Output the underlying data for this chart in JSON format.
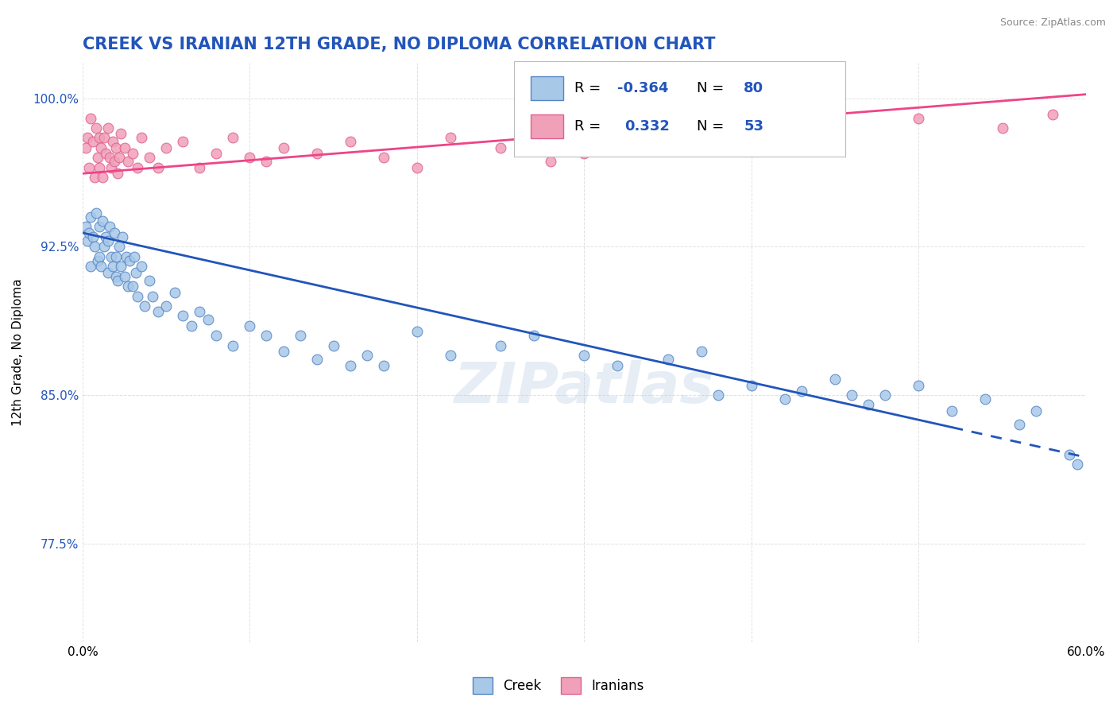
{
  "title": "CREEK VS IRANIAN 12TH GRADE, NO DIPLOMA CORRELATION CHART",
  "source_text": "Source: ZipAtlas.com",
  "ylabel": "12th Grade, No Diploma",
  "xlim": [
    0.0,
    60.0
  ],
  "ylim": [
    72.5,
    101.8
  ],
  "xticks": [
    0.0,
    10.0,
    20.0,
    30.0,
    40.0,
    50.0,
    60.0
  ],
  "yticks": [
    77.5,
    85.0,
    92.5,
    100.0
  ],
  "creek_color": "#a8c8e8",
  "iranian_color": "#f0a0b8",
  "creek_edge_color": "#5585c5",
  "iranian_edge_color": "#e06090",
  "trend_creek_color": "#2255bb",
  "trend_iranian_color": "#ee4488",
  "creek_R": -0.364,
  "creek_N": 80,
  "iranian_R": 0.332,
  "iranian_N": 53,
  "title_color": "#2255bb",
  "title_fontsize": 15,
  "background_color": "#ffffff",
  "grid_color": "#cccccc",
  "grid_alpha": 0.6,
  "watermark_text": "ZIPatlas",
  "watermark_color": "#b8cce4",
  "watermark_alpha": 0.35,
  "creek_x": [
    0.2,
    0.3,
    0.4,
    0.5,
    0.5,
    0.6,
    0.7,
    0.8,
    0.9,
    1.0,
    1.0,
    1.1,
    1.2,
    1.3,
    1.4,
    1.5,
    1.5,
    1.6,
    1.7,
    1.8,
    1.9,
    2.0,
    2.0,
    2.1,
    2.2,
    2.3,
    2.4,
    2.5,
    2.6,
    2.7,
    2.8,
    3.0,
    3.1,
    3.2,
    3.3,
    3.5,
    3.7,
    4.0,
    4.2,
    4.5,
    5.0,
    5.5,
    6.0,
    6.5,
    7.0,
    7.5,
    8.0,
    9.0,
    10.0,
    11.0,
    12.0,
    13.0,
    14.0,
    15.0,
    16.0,
    17.0,
    18.0,
    20.0,
    22.0,
    25.0,
    27.0,
    30.0,
    32.0,
    35.0,
    37.0,
    38.0,
    40.0,
    42.0,
    43.0,
    45.0,
    46.0,
    47.0,
    48.0,
    50.0,
    52.0,
    54.0,
    56.0,
    57.0,
    59.0,
    59.5
  ],
  "creek_y": [
    93.5,
    92.8,
    93.2,
    91.5,
    94.0,
    93.0,
    92.5,
    94.2,
    91.8,
    93.5,
    92.0,
    91.5,
    93.8,
    92.5,
    93.0,
    91.2,
    92.8,
    93.5,
    92.0,
    91.5,
    93.2,
    92.0,
    91.0,
    90.8,
    92.5,
    91.5,
    93.0,
    91.0,
    92.0,
    90.5,
    91.8,
    90.5,
    92.0,
    91.2,
    90.0,
    91.5,
    89.5,
    90.8,
    90.0,
    89.2,
    89.5,
    90.2,
    89.0,
    88.5,
    89.2,
    88.8,
    88.0,
    87.5,
    88.5,
    88.0,
    87.2,
    88.0,
    86.8,
    87.5,
    86.5,
    87.0,
    86.5,
    88.2,
    87.0,
    87.5,
    88.0,
    87.0,
    86.5,
    86.8,
    87.2,
    85.0,
    85.5,
    84.8,
    85.2,
    85.8,
    85.0,
    84.5,
    85.0,
    85.5,
    84.2,
    84.8,
    83.5,
    84.2,
    82.0,
    81.5
  ],
  "iranian_x": [
    0.2,
    0.3,
    0.4,
    0.5,
    0.6,
    0.7,
    0.8,
    0.9,
    1.0,
    1.0,
    1.1,
    1.2,
    1.3,
    1.4,
    1.5,
    1.6,
    1.7,
    1.8,
    1.9,
    2.0,
    2.1,
    2.2,
    2.3,
    2.5,
    2.7,
    3.0,
    3.3,
    3.5,
    4.0,
    4.5,
    5.0,
    6.0,
    7.0,
    8.0,
    9.0,
    10.0,
    11.0,
    12.0,
    14.0,
    16.0,
    18.0,
    20.0,
    22.0,
    25.0,
    28.0,
    30.0,
    33.0,
    35.0,
    40.0,
    45.0,
    50.0,
    55.0,
    58.0
  ],
  "iranian_y": [
    97.5,
    98.0,
    96.5,
    99.0,
    97.8,
    96.0,
    98.5,
    97.0,
    96.5,
    98.0,
    97.5,
    96.0,
    98.0,
    97.2,
    98.5,
    97.0,
    96.5,
    97.8,
    96.8,
    97.5,
    96.2,
    97.0,
    98.2,
    97.5,
    96.8,
    97.2,
    96.5,
    98.0,
    97.0,
    96.5,
    97.5,
    97.8,
    96.5,
    97.2,
    98.0,
    97.0,
    96.8,
    97.5,
    97.2,
    97.8,
    97.0,
    96.5,
    98.0,
    97.5,
    96.8,
    97.2,
    97.5,
    98.5,
    97.8,
    98.2,
    99.0,
    98.5,
    99.2
  ],
  "creek_trend_x0": 0.0,
  "creek_trend_y0": 93.2,
  "creek_trend_x1": 55.0,
  "creek_trend_y1": 82.8,
  "creek_dash_start_x": 52.0,
  "iranian_trend_x0": 0.0,
  "iranian_trend_y0": 96.2,
  "iranian_trend_x1": 60.0,
  "iranian_trend_y1": 100.2
}
